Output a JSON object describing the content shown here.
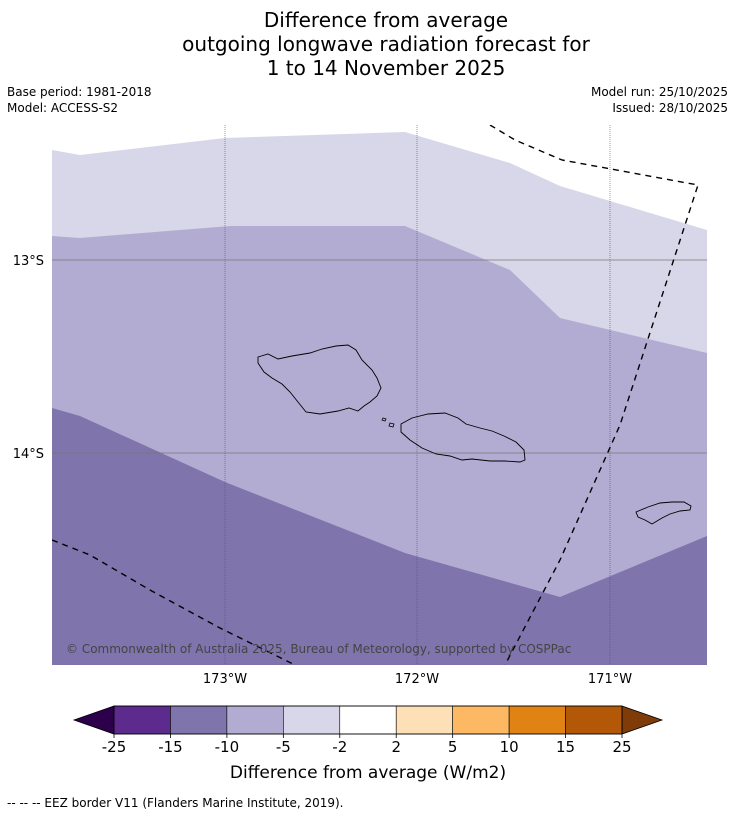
{
  "title": {
    "line1": "Difference from average",
    "line2": "outgoing longwave radiation forecast for",
    "line3": "1 to 14 November 2025"
  },
  "meta": {
    "base_period": "Base period: 1981-2018",
    "model": "Model: ACCESS-S2",
    "model_run": "Model run: 25/10/2025",
    "issued": "Issued: 28/10/2025"
  },
  "map": {
    "lat_labels": [
      "13°S",
      "14°S"
    ],
    "lon_labels": [
      "173°W",
      "172°W",
      "171°W"
    ],
    "copyright": "© Commonwealth of Australia 2025, Bureau of Meteorology, supported by COSPPac",
    "band_colors": {
      "minus2_minus5": "#d7d7e9",
      "minus5_minus10": "#b2acd2",
      "minus10_minus15": "#8074ad"
    }
  },
  "colorbar": {
    "ticks": [
      "-25",
      "-15",
      "-10",
      "-5",
      "-2",
      "2",
      "5",
      "10",
      "15",
      "25"
    ],
    "colors": [
      "#5d2a8e",
      "#8074ad",
      "#b2acd2",
      "#d7d7e9",
      "#ffffff",
      "#fee0b6",
      "#fdb863",
      "#e08214",
      "#b35806"
    ],
    "under_color": "#2d004b",
    "over_color": "#7f3b08",
    "label": "Difference from average (W/m2)"
  },
  "footnote": "--  --  -- EEZ border V11 (Flanders Marine Institute, 2019)."
}
